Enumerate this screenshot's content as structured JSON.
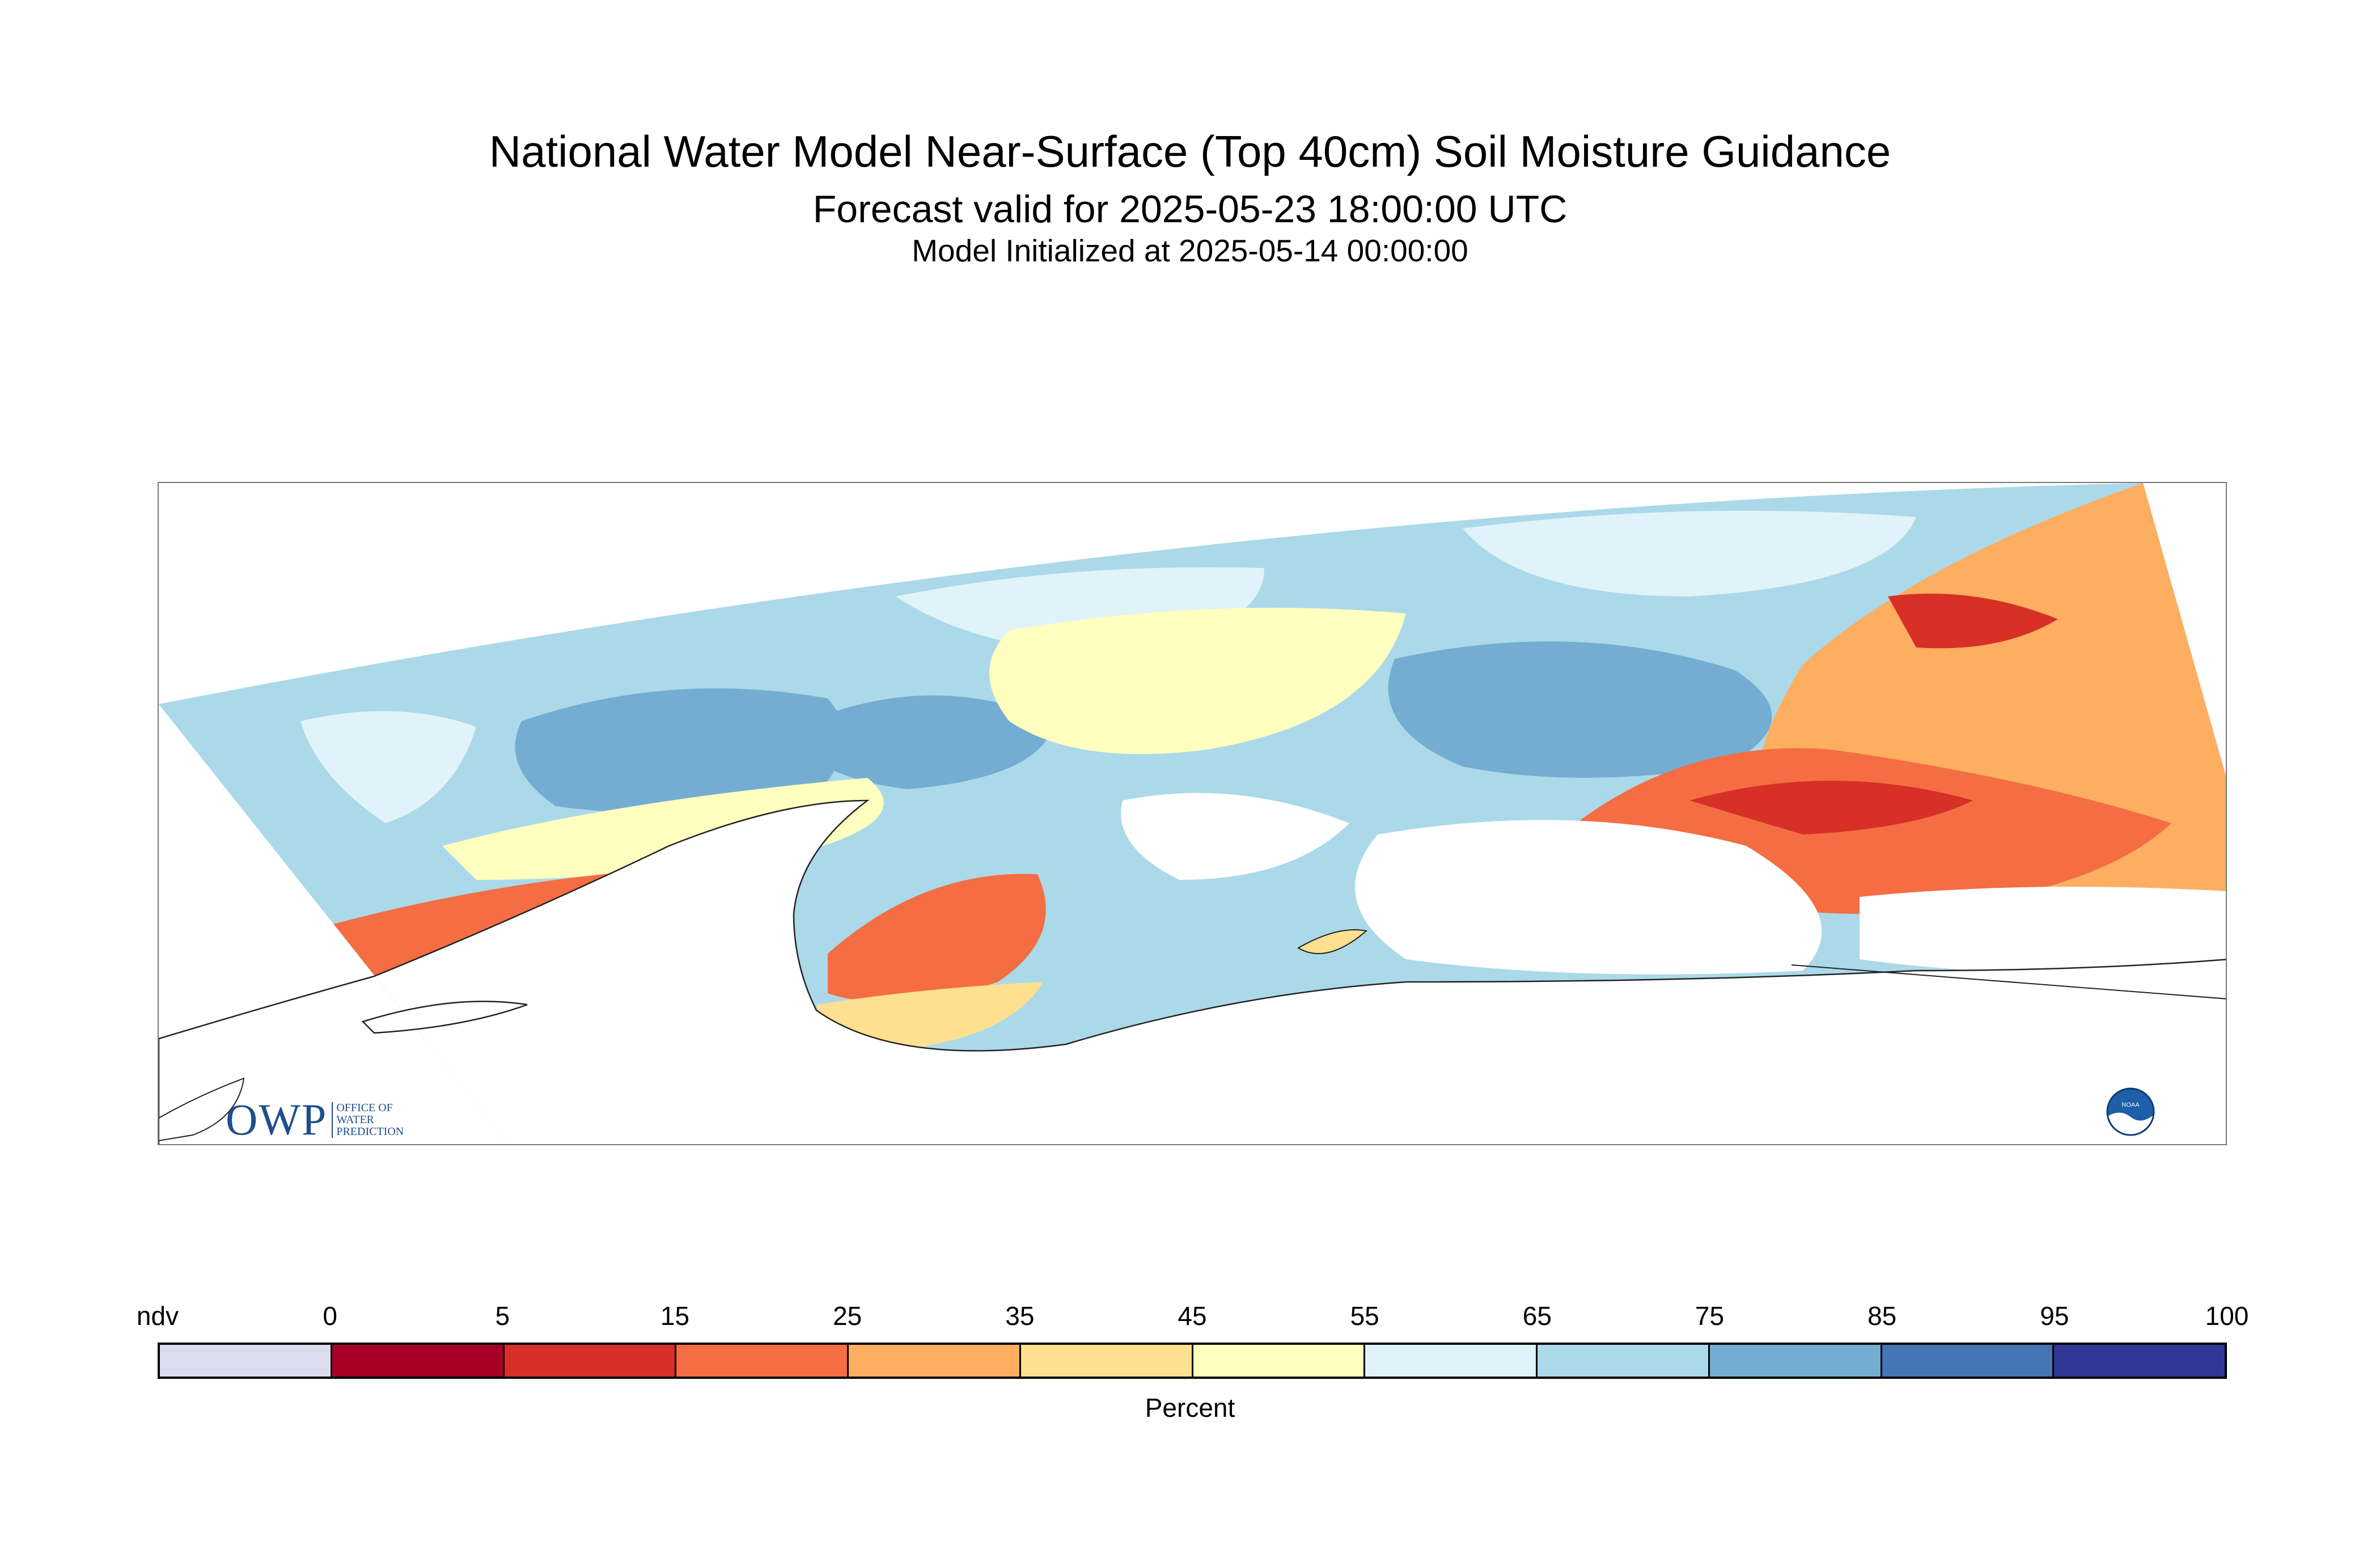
{
  "header": {
    "title": "National Water Model Near-Surface (Top 40cm) Soil Moisture Guidance",
    "forecast_valid": "Forecast valid for 2025-05-23 18:00:00 UTC",
    "initialized": "Model Initialized at 2025-05-14 00:00:00"
  },
  "map": {
    "region": "Southern Alaska soil moisture map",
    "colors": {
      "ocean": "#ffffff",
      "coastline": "#222222"
    }
  },
  "logos": {
    "owp": {
      "letters": "OWP",
      "lines": [
        "Office of",
        "Water",
        "Prediction"
      ],
      "icon": "owp-logo"
    },
    "noaa": {
      "icon": "noaa-logo",
      "text": "NOAA"
    }
  },
  "legend": {
    "tick_labels": [
      "ndv",
      "0",
      "5",
      "15",
      "25",
      "35",
      "45",
      "55",
      "65",
      "75",
      "85",
      "95",
      "100"
    ],
    "colors": [
      "#dcdcef",
      "#a50026",
      "#d73027",
      "#f46d43",
      "#fdae61",
      "#fee090",
      "#ffffbf",
      "#e0f3f8",
      "#abd9e9",
      "#74add1",
      "#4575b4",
      "#313695"
    ],
    "unit": "Percent"
  }
}
